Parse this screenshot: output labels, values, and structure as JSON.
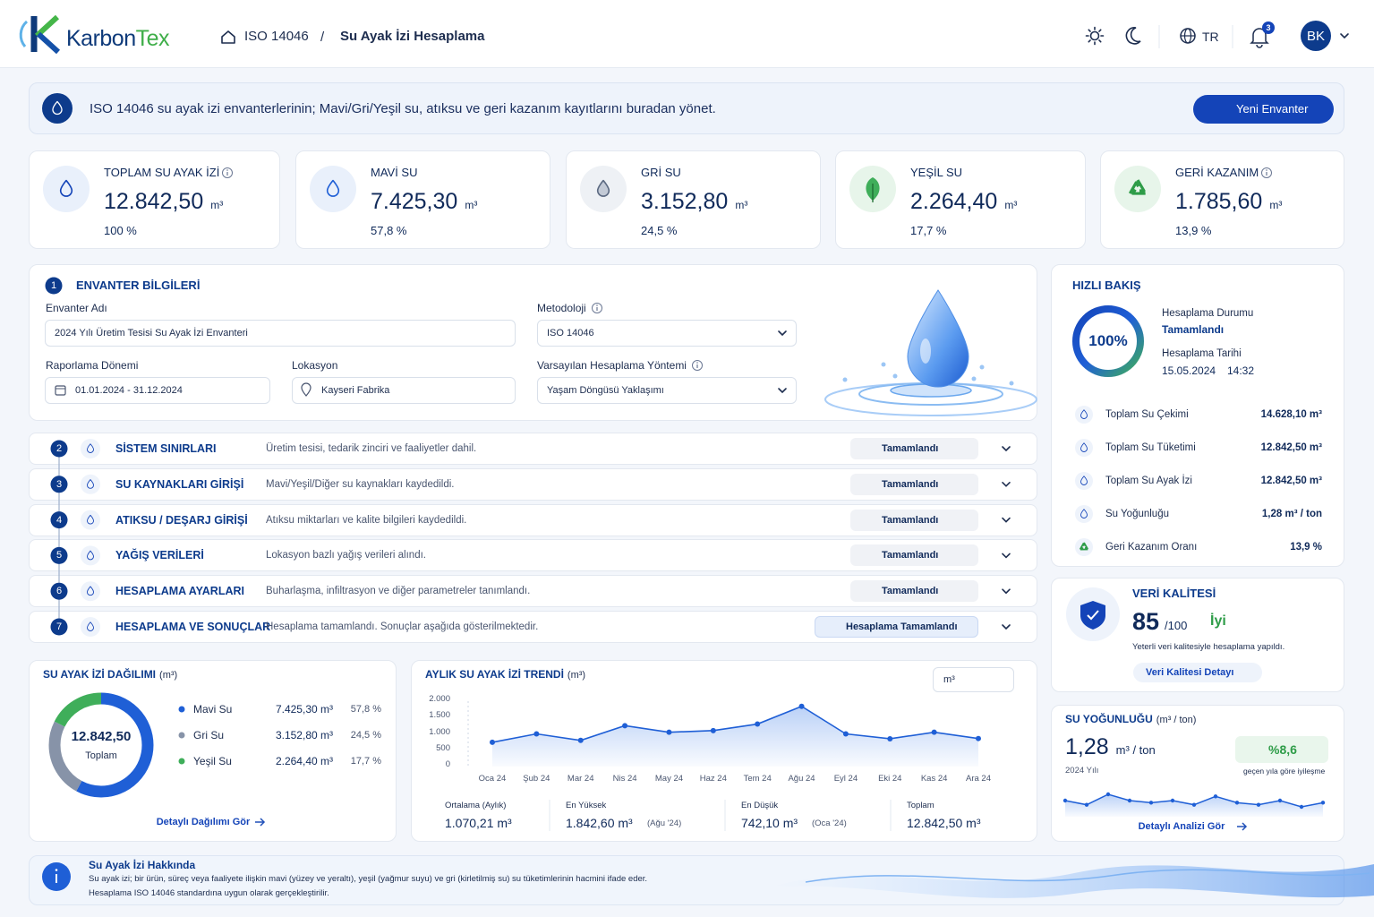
{
  "header": {
    "brand": [
      "Karbon",
      "Tex"
    ],
    "breadcrumb": [
      "ISO 14046",
      "Su Ayak İzi Hesaplama"
    ],
    "separator": "/",
    "language": "TR",
    "notifications": "3",
    "user": "BK"
  },
  "banner": {
    "text": "ISO 14046 su ayak izi envanterlerinin; Mavi/Gri/Yeşil su, atıksu ve geri kazanım kayıtlarını buradan yönet.",
    "button": "Yeni Envanter"
  },
  "kpis": [
    {
      "label": "TOPLAM SU AYAK İZİ",
      "value": "12.842,50",
      "unit": "m³",
      "share": "100 %"
    },
    {
      "label": "MAVİ SU",
      "value": "7.425,30",
      "unit": "m³",
      "share": "57,8 %"
    },
    {
      "label": "GRİ SU",
      "value": "3.152,80",
      "unit": "m³",
      "share": "24,5 %"
    },
    {
      "label": "YEŞİL SU",
      "value": "2.264,40",
      "unit": "m³",
      "share": "17,7 %"
    },
    {
      "label": "GERİ KAZANIM",
      "value": "1.785,60",
      "unit": "m³",
      "share": "13,9 %"
    }
  ],
  "inventory": {
    "number": "1",
    "title": "ENVANTER BİLGİLERİ",
    "fields": [
      {
        "label": "Envanter Adı",
        "value": "2024 Yılı Üretim Tesisi Su Ayak İzi Envanteri"
      },
      {
        "label": "Metodoloji",
        "value": "ISO 14046"
      },
      {
        "label": "Raporlama Dönemi",
        "value": "01.01.2024 - 31.12.2024"
      },
      {
        "label": "Lokasyon",
        "value": "Kayseri Fabrika"
      },
      {
        "label": "Varsayılan Hesaplama Yöntemi",
        "value": "Yaşam Döngüsü Yaklaşımı"
      }
    ]
  },
  "steps": [
    {
      "number": "2",
      "title": "SİSTEM SINIRLARI",
      "description": "Üretim tesisi, tedarik zinciri ve faaliyetler dahil.",
      "status": "Tamamlandı"
    },
    {
      "number": "3",
      "title": "SU KAYNAKLARI GİRİŞİ",
      "description": "Mavi/Yeşil/Diğer su kaynakları kaydedildi.",
      "status": "Tamamlandı"
    },
    {
      "number": "4",
      "title": "ATIKSU / DEŞARJ GİRİŞİ",
      "description": "Atıksu miktarları ve kalite bilgileri kaydedildi.",
      "status": "Tamamlandı"
    },
    {
      "number": "5",
      "title": "YAĞIŞ VERİLERİ",
      "description": "Lokasyon bazlı yağış verileri alındı.",
      "status": "Tamamlandı"
    },
    {
      "number": "6",
      "title": "HESAPLAMA AYARLARI",
      "description": "Buharlaşma, infiltrasyon ve diğer parametreler tanımlandı.",
      "status": "Tamamlandı"
    },
    {
      "number": "7",
      "title": "HESAPLAMA VE SONUÇLAR",
      "description": "Hesaplama tamamlandı. Sonuçlar aşağıda gösterilmektedir.",
      "status": "Hesaplama Tamamlandı"
    }
  ],
  "quick_view": {
    "title": "HIZLI BAKIŞ",
    "progress": 100,
    "progress_label": "100%",
    "status_label": "Hesaplama Durumu",
    "status": "Tamamlandı",
    "date_label": "Hesaplama Tarihi",
    "date": "15.05.2024",
    "time": "14:32",
    "rows": [
      {
        "label": "Toplam Su Çekimi",
        "value": "14.628,10 m³"
      },
      {
        "label": "Toplam Su Tüketimi",
        "value": "12.842,50 m³"
      },
      {
        "label": "Toplam Su Ayak İzi",
        "value": "12.842,50 m³"
      },
      {
        "label": "Su Yoğunluğu",
        "value": "1,28 m³ / ton"
      },
      {
        "label": "Geri Kazanım Oranı",
        "value": "13,9 %"
      }
    ]
  },
  "data_quality": {
    "title": "VERİ KALİTESİ",
    "score": "85",
    "max": "/100",
    "rating": "İyi",
    "note": "Yeterli veri kalitesiyle hesaplama yapıldı.",
    "link": "Veri Kalitesi Detayı"
  },
  "distribution": {
    "title": "SU AYAK İZİ DAĞILIMI",
    "unit": "(m³)",
    "total": "12.842,50",
    "total_label": "Toplam",
    "series": [
      {
        "name": "Mavi Su",
        "color": "#1f5fd6",
        "value": 7425.3,
        "value_label": "7.425,30 m³",
        "share": "57,8 %"
      },
      {
        "name": "Gri Su",
        "color": "#8793a8",
        "value": 3152.8,
        "value_label": "3.152,80 m³",
        "share": "24,5 %"
      },
      {
        "name": "Yeşil Su",
        "color": "#3fae5a",
        "value": 2264.4,
        "value_label": "2.264,40 m³",
        "share": "17,7 %"
      }
    ],
    "link": "Detaylı Dağılımı Gör"
  },
  "chart_data": {
    "type": "line",
    "title": "AYLIK SU AYAK İZİ TRENDİ",
    "unit": "(m³)",
    "unit_select": "m³",
    "color": "#1f5fd6",
    "categories": [
      "Oca 24",
      "Şub 24",
      "Mar 24",
      "Nis 24",
      "May 24",
      "Haz 24",
      "Tem 24",
      "Ağu 24",
      "Eyl 24",
      "Eki 24",
      "Kas 24",
      "Ara 24"
    ],
    "values": [
      742.1,
      1000,
      800,
      1250,
      1050,
      1100,
      1300,
      1842.6,
      1000,
      850,
      1050,
      857.8
    ],
    "ylim": [
      0,
      2000
    ],
    "yticks": [
      0,
      500,
      {
        "value": 1000,
        "label": "1.000"
      },
      {
        "value": 1500,
        "label": "1.500"
      },
      {
        "value": 2000,
        "label": "2.000"
      }
    ],
    "grid": false
  },
  "trend_stats": [
    {
      "label": "Ortalama (Aylık)",
      "value": "1.070,21 m³"
    },
    {
      "label": "En Yüksek",
      "value": "1.842,60 m³",
      "note": "(Ağu '24)"
    },
    {
      "label": "En Düşük",
      "value": "742,10 m³",
      "note": "(Oca '24)"
    },
    {
      "label": "Toplam",
      "value": "12.842,50 m³"
    }
  ],
  "intensity": {
    "title": "SU YOĞUNLUĞU",
    "unit": "(m³ / ton)",
    "value": "1,28",
    "value_unit": "m³ / ton",
    "year": "2024 Yılı",
    "change": "%8,6",
    "change_note": "geçen yıla göre iyileşme",
    "color": "#1f5fd6",
    "sparkline": [
      1.36,
      1.34,
      1.39,
      1.36,
      1.35,
      1.36,
      1.34,
      1.38,
      1.35,
      1.34,
      1.36,
      1.33,
      1.35
    ],
    "link": "Detaylı Analizi Gör"
  },
  "about": {
    "title": "Su Ayak İzi Hakkında",
    "lines": [
      "Su ayak izi; bir ürün, süreç veya faaliyete ilişkin mavi (yüzey ve yeraltı), yeşil (yağmur suyu) ve gri (kirletilmiş su) su tüketimlerinin hacmini ifade eder.",
      "Hesaplama ISO 14046 standardına uygun olarak gerçekleştirilir."
    ]
  }
}
